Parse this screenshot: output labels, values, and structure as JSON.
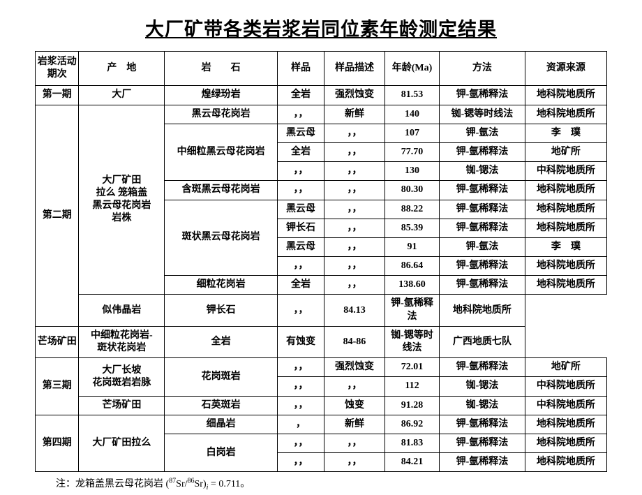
{
  "title": "大厂矿带各类岩浆岩同位素年龄测定结果",
  "headers": [
    "岩浆活动期次",
    "产　地",
    "岩　　石",
    "样品",
    "样品描述",
    "年龄(Ma)",
    "方法",
    "资源来源"
  ],
  "rows": [
    {
      "cells": [
        "第一期",
        "大厂",
        "煌绿玢岩",
        "全岩",
        "强烈蚀变",
        "81.53",
        "钾-氩稀释法",
        "地科院地质所"
      ]
    },
    {
      "cells": [
        {
          "t": "第二期",
          "rs": 11
        },
        {
          "t": "大厂矿田\n拉么 笼箱盖\n黑云母花岗岩\n岩株",
          "rs": 10
        },
        "黑云母花岗岩",
        "，，",
        "新鲜",
        "140",
        "铷-锶等时线法",
        "地科院地质所"
      ]
    },
    {
      "cells": [
        {
          "t": "中细粒黑云母花岗岩",
          "rs": 3
        },
        "黑云母",
        "，，",
        "107",
        "钾-氩法",
        "李　璞"
      ]
    },
    {
      "cells": [
        "全岩",
        "，，",
        "77.70",
        "钾-氩稀释法",
        "地矿所"
      ]
    },
    {
      "cells": [
        "，，",
        "，，",
        "130",
        "铷-锶法",
        "中科院地质所"
      ]
    },
    {
      "cells": [
        "含斑黑云母花岗岩",
        "，，",
        "，，",
        "80.30",
        "钾-氩稀释法",
        "地科院地质所"
      ]
    },
    {
      "cells": [
        {
          "t": "斑状黑云母花岗岩",
          "rs": 4
        },
        "黑云母",
        "，，",
        "88.22",
        "钾-氩稀释法",
        "地科院地质所"
      ]
    },
    {
      "cells": [
        "钾长石",
        "，，",
        "85.39",
        "钾-氩稀释法",
        "地科院地质所"
      ]
    },
    {
      "cells": [
        "黑云母",
        "，，",
        "91",
        "钾-氩法",
        "李　璞"
      ]
    },
    {
      "cells": [
        "，，",
        "，，",
        "86.64",
        "钾-氩稀释法",
        "地科院地质所"
      ]
    },
    {
      "cells": [
        "细粒花岗岩",
        "全岩",
        "，，",
        "138.60",
        "钾-氩稀释法",
        "地科院地质所"
      ]
    },
    {
      "cells": [
        "似伟晶岩",
        "钾长石",
        "，，",
        "84.13",
        "钾-氩稀释法",
        "地科院地质所"
      ]
    },
    {
      "cells": [
        "芒场矿田",
        "中细粒花岗岩-\n斑状花岗岩",
        "全岩",
        "有蚀变",
        "84-86",
        "铷-锶等时线法",
        "广西地质七队"
      ]
    },
    {
      "cells": [
        {
          "t": "第三期",
          "rs": 3
        },
        {
          "t": "大厂长坡\n花岗斑岩岩脉",
          "rs": 2
        },
        {
          "t": "花岗斑岩",
          "rs": 2
        },
        "，，",
        "强烈蚀变",
        "72.01",
        "钾-氩稀释法",
        "地矿所"
      ]
    },
    {
      "cells": [
        "，，",
        "，，",
        "112",
        "铷-锶法",
        "中科院地质所"
      ]
    },
    {
      "cells": [
        "芒场矿田",
        "石英斑岩",
        "，，",
        "蚀变",
        "91.28",
        "铷-锶法",
        "中科院地质所"
      ]
    },
    {
      "cells": [
        {
          "t": "第四期",
          "rs": 3
        },
        {
          "t": "大厂矿田拉么",
          "rs": 3
        },
        "细晶岩",
        "，",
        "新鲜",
        "86.92",
        "钾-氩稀释法",
        "地科院地质所"
      ]
    },
    {
      "cells": [
        {
          "t": "白岗岩",
          "rs": 2
        },
        "，，",
        "，，",
        "81.83",
        "钾-氩稀释法",
        "地科院地质所"
      ]
    },
    {
      "cells": [
        "，，",
        "，，",
        "84.21",
        "钾-氩稀释法",
        "地科院地质所"
      ]
    }
  ],
  "note_prefix": "注：龙箱盖黑云母花岗岩 (",
  "note_sup1": "87",
  "note_mid1": "Sr/",
  "note_sup2": "86",
  "note_mid2": "Sr)",
  "note_sub": "i",
  "note_suffix": " = 0.711。"
}
